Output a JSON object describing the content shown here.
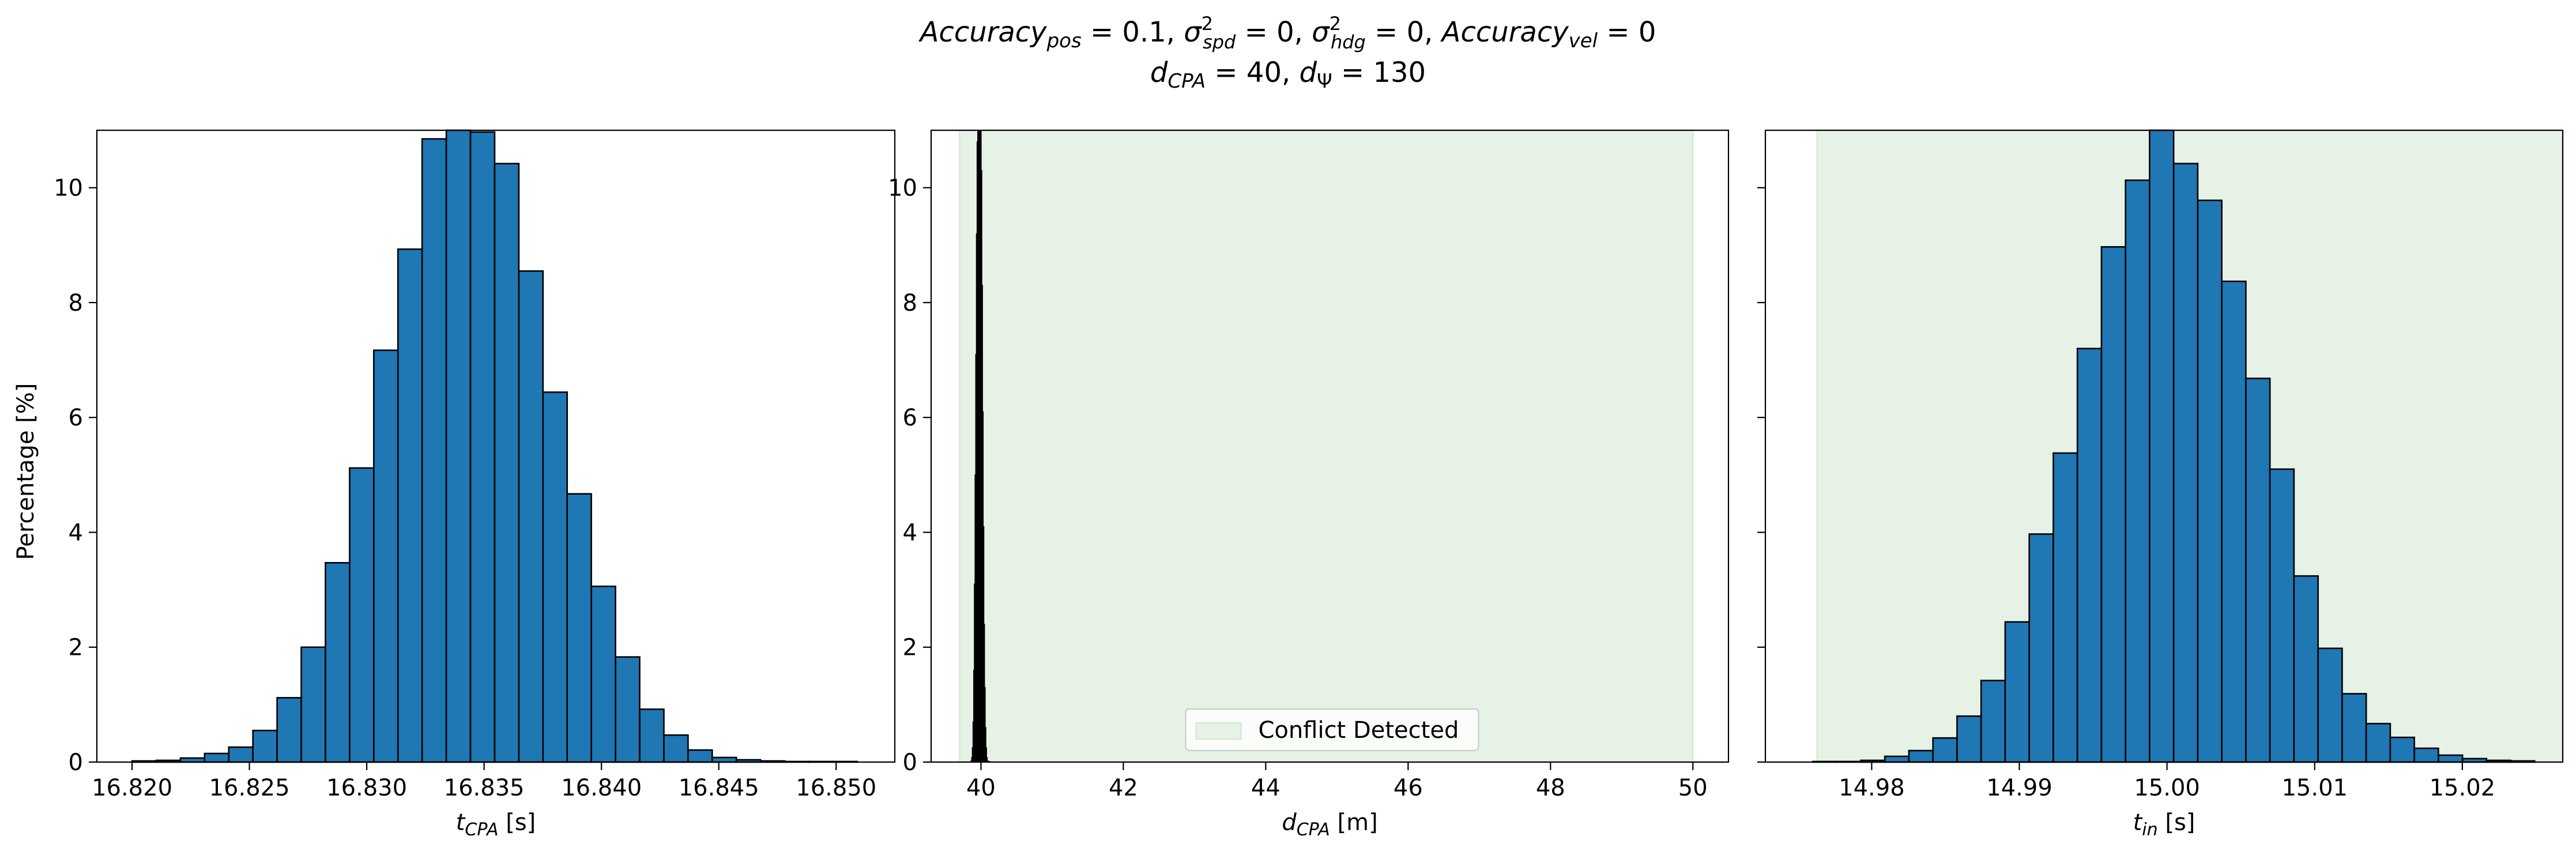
{
  "title": {
    "line1": {
      "acc_pos_name": "Accuracy",
      "acc_pos_sub": "pos",
      "acc_pos_rest": " = 0.1, ",
      "sigma": "σ",
      "spd_sup": "2",
      "spd_sub": "spd",
      "spd_rest": " = 0, ",
      "hdg_sup": "2",
      "hdg_sub": "hdg",
      "hdg_rest": " = 0, ",
      "acc_vel_name": "Accuracy",
      "acc_vel_sub": "vel",
      "acc_vel_rest": " = 0"
    },
    "line2": {
      "d": "d",
      "cpa_sub": "CPA",
      "cpa_rest": " = 40, ",
      "psi_sub": "Ψ",
      "psi_rest": " = 130"
    }
  },
  "ylabel": "Percentage [%]",
  "chart_data": [
    {
      "type": "bar",
      "subtype": "histogram",
      "xlabel": {
        "var": "t",
        "sub": "CPA",
        "unit": " [s]"
      },
      "xlim": [
        16.8185,
        16.8525
      ],
      "ylim": [
        0,
        11
      ],
      "xticks": [
        "16.820",
        "16.825",
        "16.830",
        "16.835",
        "16.840",
        "16.845",
        "16.850"
      ],
      "xtick_values": [
        16.82,
        16.825,
        16.83,
        16.835,
        16.84,
        16.845,
        16.85
      ],
      "yticks": [
        "0",
        "2",
        "4",
        "6",
        "8",
        "10"
      ],
      "ytick_values": [
        0,
        2,
        4,
        6,
        8,
        10
      ],
      "bin_start": 16.82,
      "bin_width": 0.00103,
      "values": [
        0.02,
        0.03,
        0.07,
        0.15,
        0.26,
        0.55,
        1.12,
        2.0,
        3.47,
        5.12,
        7.17,
        8.93,
        10.85,
        11.5,
        10.97,
        10.42,
        8.55,
        6.44,
        4.67,
        3.06,
        1.83,
        0.92,
        0.47,
        0.21,
        0.08,
        0.04,
        0.02,
        0.01,
        0.01,
        0.01
      ],
      "color": "#1f77b4",
      "edge": "#000000",
      "grid": false
    },
    {
      "type": "bar",
      "subtype": "histogram",
      "xlabel": {
        "var": "d",
        "sub": "CPA",
        "unit": " [m]"
      },
      "xlim": [
        39.3,
        50.5
      ],
      "ylim": [
        0,
        11
      ],
      "xticks": [
        "40",
        "42",
        "44",
        "46",
        "48",
        "50"
      ],
      "xtick_values": [
        40,
        42,
        44,
        46,
        48,
        50
      ],
      "yticks": [
        "0",
        "2",
        "4",
        "6",
        "8",
        "10"
      ],
      "ytick_values": [
        0,
        2,
        4,
        6,
        8,
        10
      ],
      "bin_start": 39.86,
      "bin_width": 0.0095,
      "values": [
        0.02,
        0.08,
        0.25,
        0.7,
        1.6,
        3.1,
        5.0,
        7.1,
        9.2,
        10.8,
        12.0,
        12.0,
        12.0,
        12.0,
        11.8,
        10.3,
        8.3,
        6.1,
        4.1,
        2.4,
        1.3,
        0.6,
        0.25,
        0.08,
        0.02,
        0.01,
        0.01,
        0.005,
        0.005,
        0.002
      ],
      "color": "#1f77b4",
      "edge": "#000000",
      "shaded_region": {
        "x0": 39.7,
        "x1": 50.0,
        "color": "#e5f2e5",
        "edge": "#cfe8cf"
      },
      "legend": {
        "label": "Conflict Detected",
        "placement": "lower-center"
      },
      "grid": false
    },
    {
      "type": "bar",
      "subtype": "histogram",
      "xlabel": {
        "var": "t",
        "sub": "in",
        "unit": " [s]"
      },
      "xlim": [
        14.9728,
        15.0268
      ],
      "ylim": [
        0,
        11
      ],
      "xticks": [
        "14.98",
        "14.99",
        "15.00",
        "15.01",
        "15.02"
      ],
      "xtick_values": [
        14.98,
        14.99,
        15.0,
        15.01,
        15.02
      ],
      "yticks": [],
      "ytick_values": [
        0,
        2,
        4,
        6,
        8,
        10
      ],
      "bin_start": 14.976,
      "bin_width": 0.00163,
      "values": [
        0.01,
        0.01,
        0.03,
        0.1,
        0.2,
        0.42,
        0.8,
        1.42,
        2.44,
        3.97,
        5.38,
        7.2,
        8.97,
        10.13,
        11.3,
        10.42,
        9.78,
        8.37,
        6.68,
        5.1,
        3.24,
        1.98,
        1.19,
        0.67,
        0.43,
        0.24,
        0.12,
        0.06,
        0.03,
        0.02
      ],
      "color": "#1f77b4",
      "edge": "#000000",
      "shaded_region": {
        "x0": 14.9763,
        "x1": 15.0268,
        "color": "#e5f2e5",
        "edge": "#cfe8cf"
      },
      "grid": false
    }
  ]
}
